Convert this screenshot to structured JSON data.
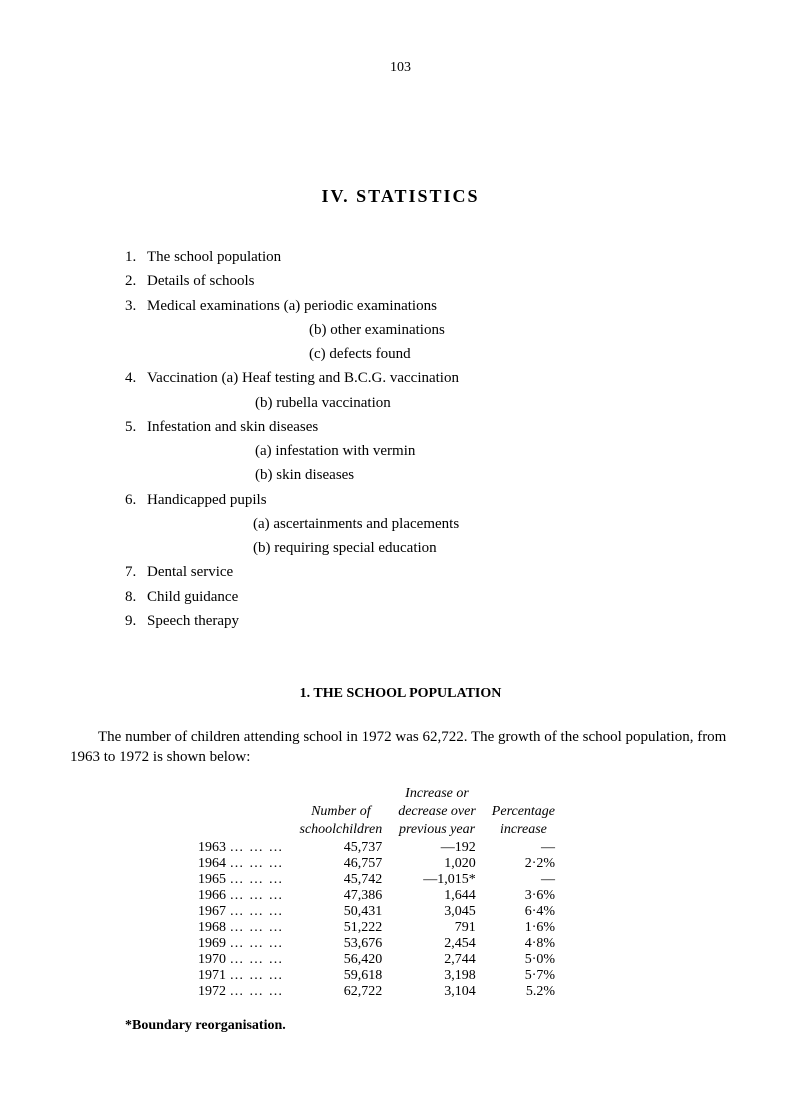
{
  "pageNumber": "103",
  "sectionTitle": "IV.  STATISTICS",
  "toc": [
    {
      "n": "1.",
      "t": "The school population"
    },
    {
      "n": "2.",
      "t": "Details of schools"
    },
    {
      "n": "3.",
      "t": "Medical examinations  (a)  periodic examinations",
      "subs": [
        "(b)  other examinations",
        "(c)  defects found"
      ],
      "subClass": "toc-sub"
    },
    {
      "n": "4.",
      "t": "Vaccination   (a)  Heaf testing and B.C.G. vaccination",
      "subs": [
        "(b)  rubella vaccination"
      ],
      "subClass": "toc-sub2"
    },
    {
      "n": "5.",
      "t": "Infestation and skin diseases",
      "subs": [
        "(a)  infestation with vermin",
        "(b)  skin diseases"
      ],
      "subClass": "toc-sub2"
    },
    {
      "n": "6.",
      "t": "Handicapped pupils",
      "subs": [
        "(a)  ascertainments and placements",
        "(b)  requiring special education"
      ],
      "subClass": "toc-sub3"
    },
    {
      "n": "7.",
      "t": "Dental service"
    },
    {
      "n": "8.",
      "t": "Child guidance"
    },
    {
      "n": "9.",
      "t": "Speech therapy"
    }
  ],
  "subheading": "1. THE SCHOOL POPULATION",
  "para": "The number of children attending school in 1972 was 62,722.  The growth of the school population, from 1963 to 1972 is shown below:",
  "table": {
    "headers": {
      "col2a": "Number of",
      "col2b": "schoolchildren",
      "col3a": "Increase or",
      "col3b": "decrease over",
      "col3c": "previous year",
      "col4a": "Percentage",
      "col4b": "increase"
    },
    "rows": [
      {
        "year": "1963",
        "num": "45,737",
        "delta": "—192",
        "pct": "—"
      },
      {
        "year": "1964",
        "num": "46,757",
        "delta": "1,020",
        "pct": "2·2%"
      },
      {
        "year": "1965",
        "num": "45,742",
        "delta": "—1,015*",
        "pct": "—"
      },
      {
        "year": "1966",
        "num": "47,386",
        "delta": "1,644",
        "pct": "3·6%"
      },
      {
        "year": "1967",
        "num": "50,431",
        "delta": "3,045",
        "pct": "6·4%"
      },
      {
        "year": "1968",
        "num": "51,222",
        "delta": "791",
        "pct": "1·6%"
      },
      {
        "year": "1969",
        "num": "53,676",
        "delta": "2,454",
        "pct": "4·8%"
      },
      {
        "year": "1970",
        "num": "56,420",
        "delta": "2,744",
        "pct": "5·0%"
      },
      {
        "year": "1971",
        "num": "59,618",
        "delta": "3,198",
        "pct": "5·7%"
      },
      {
        "year": "1972",
        "num": "62,722",
        "delta": "3,104",
        "pct": "5.2%"
      }
    ]
  },
  "footnote": "*Boundary reorganisation.",
  "dotsCell": "…        …        …"
}
